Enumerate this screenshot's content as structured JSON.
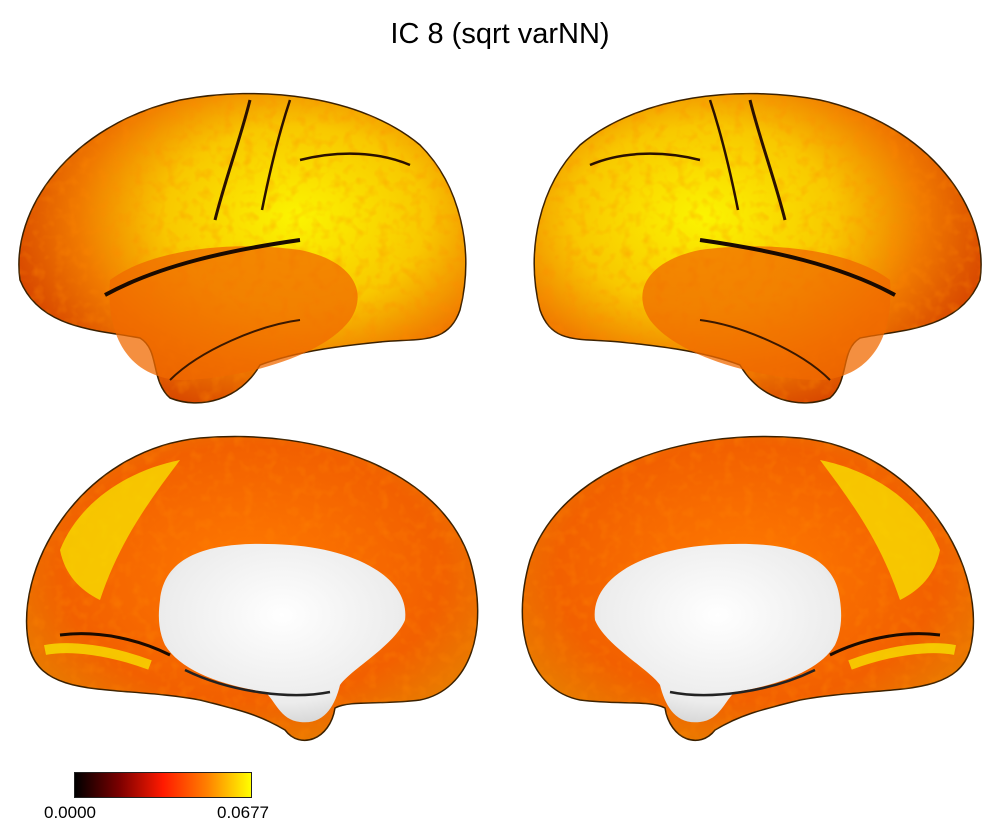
{
  "title": "IC 8 (sqrt varNN)",
  "views": [
    "left-lateral",
    "right-lateral",
    "left-medial",
    "right-medial"
  ],
  "colorbar": {
    "min_label": "0.0000",
    "max_label": "0.0677",
    "colormap": "hot",
    "colors": [
      "#000000",
      "#7a0000",
      "#ff1a00",
      "#ff8000",
      "#ffff00"
    ]
  },
  "colors": {
    "surface_high": "#f7f000",
    "surface_mid": "#ff9a00",
    "surface_low": "#e54a00",
    "medial_wall": "#f2f2f2"
  }
}
